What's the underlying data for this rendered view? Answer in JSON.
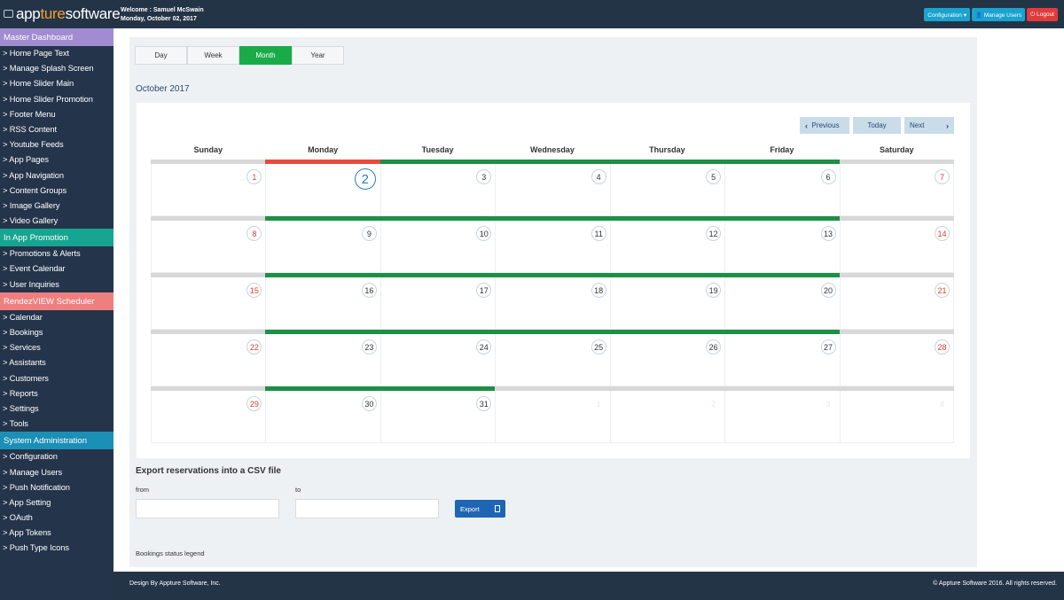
{
  "header": {
    "logo_prefix": "app",
    "logo_accent": "ture",
    "logo_suffix": "software",
    "welcome": "Welcome : Samuel McSwain",
    "date": "Monday, October 02, 2017",
    "buttons": {
      "configuration": "Configuration ▾",
      "manage_users": "👤 Manage Users",
      "logout": "⏻ Logout"
    }
  },
  "sidebar": {
    "sections": [
      {
        "title": "Master Dashboard",
        "color": "#a18cd1",
        "items": [
          "> Home Page Text",
          "> Manage Splash Screen",
          "> Home Slider Main",
          "> Home Slider Promotion",
          "> Footer Menu",
          "> RSS Content",
          "> Youtube Feeds",
          "> App Pages",
          "> App Navigation",
          "> Content Groups",
          "> Image Gallery",
          "> Video Gallery"
        ]
      },
      {
        "title": "In App Promotion",
        "color": "#16a591",
        "items": [
          "> Promotions & Alerts",
          "> Event Calendar",
          "> User Inquiries"
        ]
      },
      {
        "title": "RendezVIEW Scheduler",
        "color": "#ef7f7f",
        "items": [
          "> Calendar",
          "> Bookings",
          "> Services",
          "> Assistants",
          "> Customers",
          "> Reports",
          "> Settings",
          "> Tools"
        ]
      },
      {
        "title": "System Administration",
        "color": "#1b8fb5",
        "items": [
          "> Configuration",
          "> Manage Users",
          "> Push Notification",
          "> App Setting",
          "> OAuth",
          "> App Tokens",
          "> Push Type Icons"
        ]
      }
    ]
  },
  "calendar": {
    "view_tabs": [
      "Day",
      "Week",
      "Month",
      "Year"
    ],
    "active_tab": "Month",
    "title": "October 2017",
    "nav": {
      "previous": "Previous",
      "today": "Today",
      "next": "Next"
    },
    "weekdays": [
      "Sunday",
      "Monday",
      "Tuesday",
      "Wednesday",
      "Thursday",
      "Friday",
      "Saturday"
    ],
    "weeks": [
      {
        "days": [
          "1",
          "2",
          "3",
          "4",
          "5",
          "6",
          "7"
        ],
        "bars": [
          "gray",
          "red",
          "green",
          "green",
          "green",
          "green",
          "gray"
        ]
      },
      {
        "days": [
          "8",
          "9",
          "10",
          "11",
          "12",
          "13",
          "14"
        ],
        "bars": [
          "gray",
          "green",
          "green",
          "green",
          "green",
          "green",
          "gray"
        ]
      },
      {
        "days": [
          "15",
          "16",
          "17",
          "18",
          "19",
          "20",
          "21"
        ],
        "bars": [
          "gray",
          "green",
          "green",
          "green",
          "green",
          "green",
          "gray"
        ]
      },
      {
        "days": [
          "22",
          "23",
          "24",
          "25",
          "26",
          "27",
          "28"
        ],
        "bars": [
          "gray",
          "green",
          "green",
          "green",
          "green",
          "green",
          "gray"
        ]
      },
      {
        "days": [
          "29",
          "30",
          "31",
          "1",
          "2",
          "3",
          "4"
        ],
        "bars": [
          "gray",
          "green",
          "green",
          "gray",
          "gray",
          "gray",
          "gray"
        ]
      }
    ],
    "today": "2",
    "colors": {
      "green": "#1d8f46",
      "red": "#e84b3c",
      "gray": "#d8d8d8",
      "weekend_text": "#e53b2c"
    }
  },
  "export": {
    "title": "Export reservations into a CSV file",
    "from_label": "from",
    "to_label": "to",
    "from_value": "",
    "to_value": "",
    "button": "Export"
  },
  "legend": {
    "title": "Bookings status legend"
  },
  "footer": {
    "left": "Design By Appture Software, Inc.",
    "right": "© Appture Software 2016. All rights reserved."
  }
}
